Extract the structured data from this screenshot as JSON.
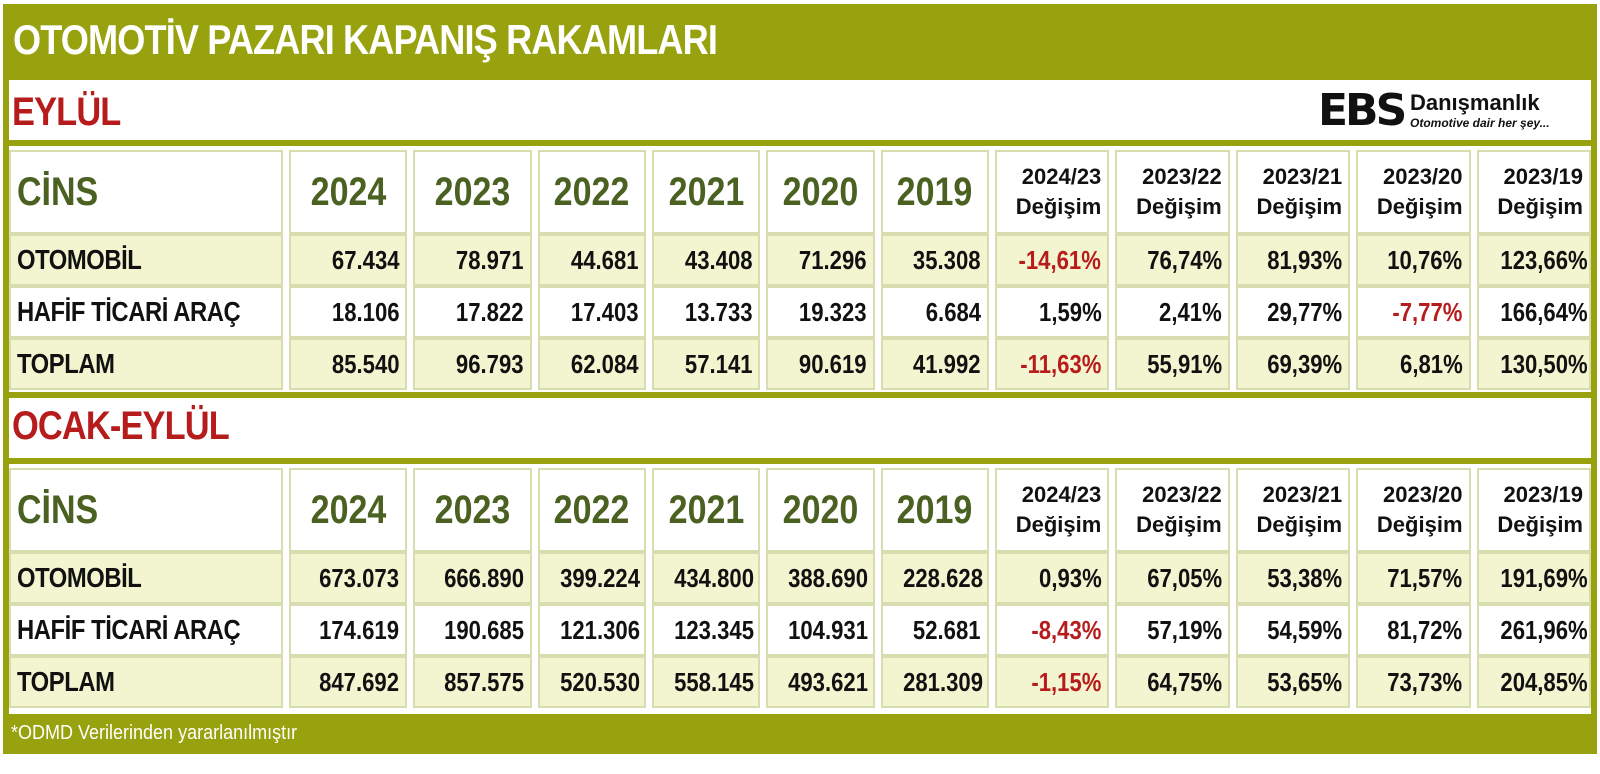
{
  "title": "OTOMOTİV PAZARI KAPANIŞ RAKAMLARI",
  "logo": {
    "mark": "EBS",
    "name": "Danışmanlık",
    "tagline": "Otomotive dair her şey..."
  },
  "colors": {
    "banner": "#97a20e",
    "negative": "#b71c1c",
    "header_text": "#4a6122",
    "row_alt": "#f2f5cf"
  },
  "columns": {
    "cins": "CİNS",
    "years": [
      "2024",
      "2023",
      "2022",
      "2021",
      "2020",
      "2019"
    ],
    "changes": [
      {
        "period": "2024/23",
        "label": "Değişim"
      },
      {
        "period": "2023/22",
        "label": "Değişim"
      },
      {
        "period": "2023/21",
        "label": "Değişim"
      },
      {
        "period": "2023/20",
        "label": "Değişim"
      },
      {
        "period": "2023/19",
        "label": "Değişim"
      }
    ]
  },
  "sections": [
    {
      "title": "EYLÜL",
      "rows": [
        {
          "label": "OTOMOBİL",
          "values": [
            "67.434",
            "78.971",
            "44.681",
            "43.408",
            "71.296",
            "35.308"
          ],
          "changes": [
            "-14,61%",
            "76,74%",
            "81,93%",
            "10,76%",
            "123,66%"
          ]
        },
        {
          "label": "HAFİF TİCARİ ARAÇ",
          "values": [
            "18.106",
            "17.822",
            "17.403",
            "13.733",
            "19.323",
            "6.684"
          ],
          "changes": [
            "1,59%",
            "2,41%",
            "29,77%",
            "-7,77%",
            "166,64%"
          ]
        },
        {
          "label": "TOPLAM",
          "values": [
            "85.540",
            "96.793",
            "62.084",
            "57.141",
            "90.619",
            "41.992"
          ],
          "changes": [
            "-11,63%",
            "55,91%",
            "69,39%",
            "6,81%",
            "130,50%"
          ]
        }
      ]
    },
    {
      "title": "OCAK-EYLÜL",
      "rows": [
        {
          "label": "OTOMOBİL",
          "values": [
            "673.073",
            "666.890",
            "399.224",
            "434.800",
            "388.690",
            "228.628"
          ],
          "changes": [
            "0,93%",
            "67,05%",
            "53,38%",
            "71,57%",
            "191,69%"
          ]
        },
        {
          "label": "HAFİF TİCARİ ARAÇ",
          "values": [
            "174.619",
            "190.685",
            "121.306",
            "123.345",
            "104.931",
            "52.681"
          ],
          "changes": [
            "-8,43%",
            "57,19%",
            "54,59%",
            "81,72%",
            "261,96%"
          ]
        },
        {
          "label": "TOPLAM",
          "values": [
            "847.692",
            "857.575",
            "520.530",
            "558.145",
            "493.621",
            "281.309"
          ],
          "changes": [
            "-1,15%",
            "64,75%",
            "53,65%",
            "73,73%",
            "204,85%"
          ]
        }
      ]
    }
  ],
  "footer": "*ODMD Verilerinden yararlanılmıştır"
}
